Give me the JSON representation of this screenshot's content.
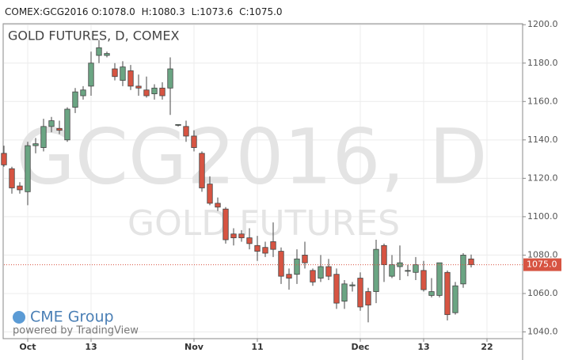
{
  "header": {
    "symbol": "COMEX:GCG2016",
    "fields": [
      {
        "label": "O:",
        "value": "1078.0"
      },
      {
        "label": "H:",
        "value": "1080.3"
      },
      {
        "label": "L:",
        "value": "1073.6"
      },
      {
        "label": "C:",
        "value": "1075.0"
      }
    ]
  },
  "chart_data": {
    "type": "candlestick",
    "title": "GOLD FUTURES, D, COMEX",
    "watermark": "GCG2016, D",
    "watermark_sub": "GOLD FUTURES",
    "logo": "CME Group",
    "powered": "powered by TradingView",
    "up_color": "#6ba583",
    "down_color": "#d75442",
    "grid": true,
    "x": [
      0,
      1,
      2,
      3,
      4,
      5,
      6,
      7,
      8,
      9,
      10,
      11,
      12,
      13,
      14,
      15,
      16,
      17,
      18,
      19,
      20,
      21,
      22,
      23,
      24,
      25,
      26,
      27,
      28,
      29,
      30,
      31,
      32,
      33,
      34,
      35,
      36,
      37,
      38,
      39,
      40,
      41,
      42,
      43,
      44,
      45,
      46,
      47,
      48,
      49,
      50,
      51,
      52,
      53,
      54,
      55,
      56,
      57,
      58,
      59
    ],
    "open": [
      1133,
      1125,
      1116,
      1113,
      1137,
      1136,
      1147,
      1146,
      1140,
      1157,
      1163,
      1168,
      1184,
      1184,
      1177,
      1171,
      1176,
      1168,
      1166,
      1164,
      1167,
      1167,
      1148,
      1147,
      1142,
      1133,
      1117,
      1107,
      1104,
      1091,
      1091,
      1089,
      1085,
      1084,
      1087,
      1082,
      1070,
      1070,
      1080,
      1072,
      1068,
      1074,
      1070,
      1056,
      1064,
      1068,
      1061,
      1061,
      1085,
      1069,
      1074,
      1072,
      1071,
      1072,
      1059,
      1059,
      1071,
      1050,
      1065,
      1078
    ],
    "high": [
      1137,
      1126,
      1118,
      1139,
      1141,
      1151,
      1152,
      1150,
      1157,
      1167,
      1168,
      1186,
      1192,
      1186,
      1180,
      1181,
      1179,
      1174,
      1173,
      1169,
      1170,
      1183,
      1148,
      1150,
      1145,
      1134,
      1121,
      1110,
      1105,
      1094,
      1093,
      1094,
      1090,
      1087,
      1097,
      1084,
      1073,
      1083,
      1087,
      1073,
      1080,
      1078,
      1073,
      1067,
      1066,
      1071,
      1063,
      1088,
      1086,
      1080,
      1085,
      1075,
      1079,
      1077,
      1068,
      1076,
      1072,
      1066,
      1081,
      1080.3
    ],
    "low": [
      1126,
      1112,
      1112,
      1106,
      1133,
      1134,
      1144,
      1143,
      1139,
      1154,
      1161,
      1163,
      1180,
      1183,
      1171,
      1168,
      1166,
      1163,
      1162,
      1161,
      1161,
      1153,
      1147,
      1139,
      1134,
      1113,
      1106,
      1103,
      1086,
      1085,
      1087,
      1083,
      1077,
      1079,
      1079,
      1065,
      1062,
      1065,
      1073,
      1064,
      1066,
      1067,
      1052,
      1052,
      1061,
      1051,
      1045,
      1055,
      1066,
      1068,
      1067,
      1069,
      1067,
      1061,
      1058,
      1058,
      1046,
      1049,
      1063,
      1073.6
    ],
    "close": [
      1127,
      1115,
      1114,
      1137,
      1138,
      1147,
      1150,
      1145,
      1156,
      1165,
      1166,
      1180,
      1188,
      1185,
      1173,
      1178,
      1168,
      1167,
      1163,
      1167,
      1163,
      1177,
      1148,
      1142,
      1136,
      1115,
      1107,
      1105,
      1088,
      1089,
      1089,
      1086,
      1082,
      1081,
      1083,
      1069,
      1068,
      1078,
      1076,
      1066,
      1074,
      1069,
      1055,
      1065,
      1064.5,
      1053,
      1054,
      1083,
      1075,
      1075,
      1076,
      1072,
      1075,
      1062,
      1061,
      1076,
      1049,
      1064,
      1080,
      1075
    ],
    "xlim": [
      0,
      65.5
    ],
    "xticks": [
      {
        "value": 3,
        "label": "Oct"
      },
      {
        "value": 11,
        "label": "13"
      },
      {
        "value": 24,
        "label": "Nov"
      },
      {
        "value": 32,
        "label": "11"
      },
      {
        "value": 45,
        "label": "Dec"
      },
      {
        "value": 53,
        "label": "13"
      },
      {
        "value": 61,
        "label": "22"
      }
    ],
    "ylim": [
      1036.5,
      1200.5
    ],
    "yticks": [
      {
        "value": 1040,
        "label": "1040.0"
      },
      {
        "value": 1060,
        "label": "1060.0"
      },
      {
        "value": 1080,
        "label": "1080.0"
      },
      {
        "value": 1100,
        "label": "1100.0"
      },
      {
        "value": 1120,
        "label": "1120.0"
      },
      {
        "value": 1140,
        "label": "1140.0"
      },
      {
        "value": 1160,
        "label": "1160.0"
      },
      {
        "value": 1180,
        "label": "1180.0"
      },
      {
        "value": 1200,
        "label": "1200.0"
      }
    ],
    "last_price": {
      "value": 1075,
      "label": "1075.0"
    }
  }
}
